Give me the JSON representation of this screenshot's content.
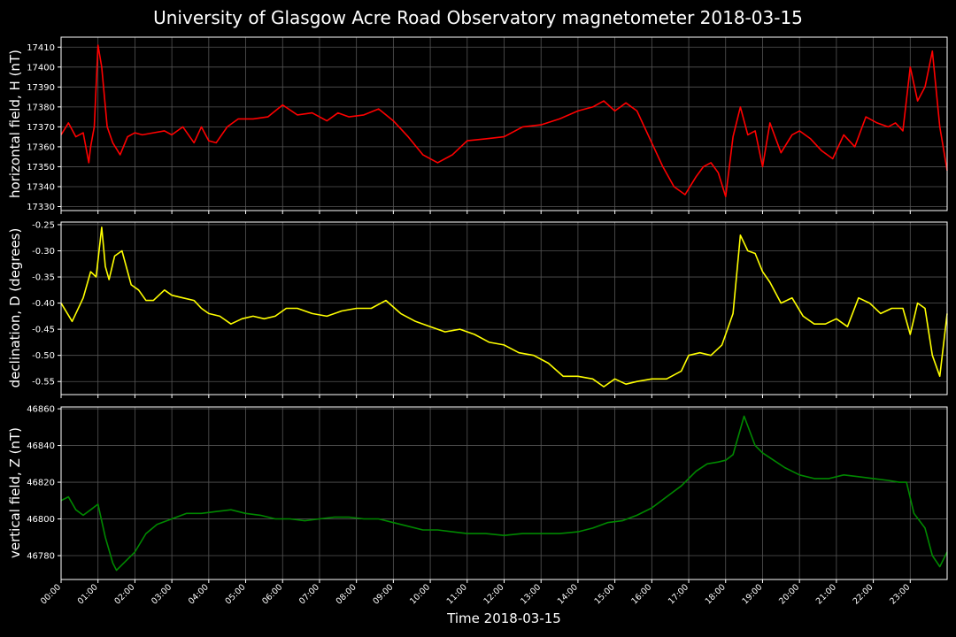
{
  "chart_data": [
    {
      "type": "line",
      "title": "University of Glasgow Acre Road Observatory magnetometer 2018-03-15",
      "xlabel": "Time 2018-03-15",
      "ylabel": "horizontal field, H (nT)",
      "series": [
        {
          "name": "",
          "color": "#ff0000"
        }
      ],
      "ylim": [
        17328,
        17415
      ],
      "yticks": [
        17330,
        17340,
        17350,
        17360,
        17370,
        17380,
        17390,
        17400,
        17410
      ],
      "x": [
        0.0,
        0.2,
        0.4,
        0.6,
        0.75,
        0.8,
        0.9,
        1.0,
        1.1,
        1.25,
        1.4,
        1.6,
        1.8,
        2.0,
        2.2,
        2.5,
        2.8,
        3.0,
        3.3,
        3.6,
        3.8,
        4.0,
        4.2,
        4.5,
        4.8,
        5.2,
        5.6,
        6.0,
        6.4,
        6.8,
        7.2,
        7.5,
        7.8,
        8.2,
        8.6,
        9.0,
        9.4,
        9.8,
        10.2,
        10.6,
        11.0,
        11.5,
        12.0,
        12.5,
        13.0,
        13.5,
        14.0,
        14.4,
        14.7,
        15.0,
        15.3,
        15.6,
        16.0,
        16.3,
        16.6,
        16.9,
        17.2,
        17.4,
        17.6,
        17.8,
        18.0,
        18.2,
        18.4,
        18.6,
        18.8,
        19.0,
        19.2,
        19.5,
        19.8,
        20.0,
        20.3,
        20.6,
        20.9,
        21.2,
        21.5,
        21.8,
        22.1,
        22.4,
        22.6,
        22.8,
        23.0,
        23.2,
        23.4,
        23.6,
        23.8,
        24.0
      ],
      "values": [
        17366,
        17372,
        17365,
        17367,
        17352,
        17360,
        17370,
        17411,
        17400,
        17370,
        17362,
        17356,
        17365,
        17367,
        17366,
        17367,
        17368,
        17366,
        17370,
        17362,
        17370,
        17363,
        17362,
        17370,
        17374,
        17374,
        17375,
        17381,
        17376,
        17377,
        17373,
        17377,
        17375,
        17376,
        17379,
        17373,
        17365,
        17356,
        17352,
        17356,
        17363,
        17364,
        17365,
        17370,
        17371,
        17374,
        17378,
        17380,
        17383,
        17378,
        17382,
        17378,
        17362,
        17350,
        17340,
        17336,
        17345,
        17350,
        17352,
        17347,
        17335,
        17365,
        17380,
        17366,
        17368,
        17350,
        17372,
        17357,
        17366,
        17368,
        17364,
        17358,
        17354,
        17366,
        17360,
        17375,
        17372,
        17370,
        17372,
        17368,
        17400,
        17383,
        17390,
        17408,
        17370,
        17348
      ]
    },
    {
      "type": "line",
      "ylabel": "declination, D (degrees)",
      "series": [
        {
          "name": "",
          "color": "#ffff00"
        }
      ],
      "ylim": [
        -0.575,
        -0.245
      ],
      "yticks": [
        -0.55,
        -0.5,
        -0.45,
        -0.4,
        -0.35,
        -0.3,
        -0.25
      ],
      "x": [
        0.0,
        0.3,
        0.6,
        0.8,
        0.95,
        1.1,
        1.2,
        1.3,
        1.45,
        1.65,
        1.9,
        2.1,
        2.3,
        2.5,
        2.8,
        3.0,
        3.3,
        3.6,
        3.8,
        4.0,
        4.3,
        4.6,
        4.9,
        5.2,
        5.5,
        5.8,
        6.1,
        6.4,
        6.8,
        7.2,
        7.6,
        8.0,
        8.4,
        8.8,
        9.2,
        9.6,
        10.0,
        10.4,
        10.8,
        11.2,
        11.6,
        12.0,
        12.4,
        12.8,
        13.2,
        13.6,
        14.0,
        14.4,
        14.7,
        15.0,
        15.3,
        15.6,
        16.0,
        16.4,
        16.8,
        17.0,
        17.3,
        17.6,
        17.9,
        18.2,
        18.4,
        18.6,
        18.8,
        19.0,
        19.2,
        19.5,
        19.8,
        20.1,
        20.4,
        20.7,
        21.0,
        21.3,
        21.6,
        21.9,
        22.2,
        22.5,
        22.8,
        23.0,
        23.2,
        23.4,
        23.6,
        23.8,
        24.0
      ],
      "values": [
        -0.4,
        -0.435,
        -0.39,
        -0.34,
        -0.35,
        -0.255,
        -0.33,
        -0.355,
        -0.31,
        -0.3,
        -0.365,
        -0.375,
        -0.395,
        -0.395,
        -0.375,
        -0.385,
        -0.39,
        -0.395,
        -0.41,
        -0.42,
        -0.425,
        -0.44,
        -0.43,
        -0.425,
        -0.43,
        -0.425,
        -0.41,
        -0.41,
        -0.42,
        -0.425,
        -0.415,
        -0.41,
        -0.41,
        -0.395,
        -0.42,
        -0.435,
        -0.445,
        -0.455,
        -0.45,
        -0.46,
        -0.475,
        -0.48,
        -0.495,
        -0.5,
        -0.515,
        -0.54,
        -0.54,
        -0.545,
        -0.56,
        -0.545,
        -0.555,
        -0.55,
        -0.545,
        -0.545,
        -0.53,
        -0.5,
        -0.495,
        -0.5,
        -0.48,
        -0.42,
        -0.27,
        -0.3,
        -0.305,
        -0.34,
        -0.36,
        -0.4,
        -0.39,
        -0.425,
        -0.44,
        -0.44,
        -0.43,
        -0.445,
        -0.39,
        -0.4,
        -0.42,
        -0.41,
        -0.41,
        -0.46,
        -0.4,
        -0.41,
        -0.5,
        -0.54,
        -0.42
      ]
    },
    {
      "type": "line",
      "ylabel": "vertical field, Z (nT)",
      "series": [
        {
          "name": "",
          "color": "#008800"
        }
      ],
      "ylim": [
        46767,
        46861
      ],
      "yticks": [
        46780,
        46800,
        46820,
        46840,
        46860
      ],
      "x": [
        0.0,
        0.2,
        0.4,
        0.6,
        0.8,
        1.0,
        1.2,
        1.4,
        1.5,
        1.7,
        2.0,
        2.3,
        2.6,
        3.0,
        3.4,
        3.8,
        4.2,
        4.6,
        5.0,
        5.4,
        5.8,
        6.2,
        6.6,
        7.0,
        7.4,
        7.8,
        8.2,
        8.6,
        9.0,
        9.4,
        9.8,
        10.2,
        10.6,
        11.0,
        11.5,
        12.0,
        12.5,
        13.0,
        13.5,
        14.0,
        14.4,
        14.8,
        15.2,
        15.6,
        16.0,
        16.4,
        16.8,
        17.2,
        17.5,
        17.8,
        18.0,
        18.2,
        18.5,
        18.8,
        19.0,
        19.3,
        19.6,
        20.0,
        20.4,
        20.8,
        21.2,
        21.6,
        22.0,
        22.4,
        22.7,
        22.9,
        23.1,
        23.4,
        23.6,
        23.8,
        24.0
      ],
      "values": [
        46810,
        46812,
        46805,
        46802,
        46805,
        46808,
        46790,
        46776,
        46772,
        46776,
        46782,
        46792,
        46797,
        46800,
        46803,
        46803,
        46804,
        46805,
        46803,
        46802,
        46800,
        46800,
        46799,
        46800,
        46801,
        46801,
        46800,
        46800,
        46798,
        46796,
        46794,
        46794,
        46793,
        46792,
        46792,
        46791,
        46792,
        46792,
        46792,
        46793,
        46795,
        46798,
        46799,
        46802,
        46806,
        46812,
        46818,
        46826,
        46830,
        46831,
        46832,
        46835,
        46856,
        46840,
        46836,
        46832,
        46828,
        46824,
        46822,
        46822,
        46824,
        46823,
        46822,
        46821,
        46820,
        46820,
        46803,
        46795,
        46780,
        46774,
        46782
      ]
    }
  ],
  "x_axis": {
    "xlim": [
      0,
      24
    ],
    "tick_labels": [
      "00:00",
      "01:00",
      "02:00",
      "03:00",
      "04:00",
      "05:00",
      "06:00",
      "07:00",
      "08:00",
      "09:00",
      "10:00",
      "11:00",
      "12:00",
      "13:00",
      "14:00",
      "15:00",
      "16:00",
      "17:00",
      "18:00",
      "19:00",
      "20:00",
      "21:00",
      "22:00",
      "23:00"
    ]
  },
  "colors": {
    "background": "#000000",
    "axes": "#ffffff",
    "grid": "#555555"
  }
}
